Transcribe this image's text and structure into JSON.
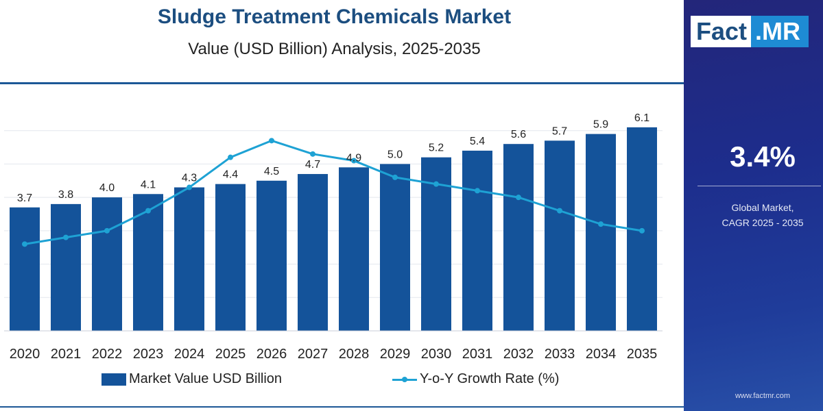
{
  "header": {
    "title": "Sludge Treatment Chemicals Market",
    "subtitle": "Value (USD Billion) Analysis, 2025-2035"
  },
  "legend": {
    "bar_label": "Market Value USD Billion",
    "line_label": "Y-o-Y Growth Rate (%)"
  },
  "side_panel": {
    "logo_left": "Fact",
    "logo_right": ".MR",
    "cagr_value": "3.4%",
    "cagr_label_line1": "Global Market,",
    "cagr_label_line2": "CAGR 2025 - 2035",
    "website": "www.factmr.com"
  },
  "colors": {
    "bar": "#14539a",
    "line": "#1ea2d4",
    "title": "#1c4e80",
    "gridline": "#e3e7ee"
  },
  "chart_data": {
    "type": "bar",
    "title": "Sludge Treatment Chemicals Market",
    "subtitle": "Value (USD Billion) Analysis, 2025-2035",
    "categories": [
      "2020",
      "2021",
      "2022",
      "2023",
      "2024",
      "2025",
      "2026",
      "2027",
      "2028",
      "2029",
      "2030",
      "2031",
      "2032",
      "2033",
      "2034",
      "2035"
    ],
    "series": [
      {
        "name": "Market Value USD Billion",
        "type": "bar",
        "axis": "left",
        "values": [
          3.7,
          3.8,
          4.0,
          4.1,
          4.3,
          4.4,
          4.5,
          4.7,
          4.9,
          5.0,
          5.2,
          5.4,
          5.6,
          5.7,
          5.9,
          6.1
        ],
        "labels": [
          "3.7",
          "3.8",
          "4.0",
          "4.1",
          "4.3",
          "4.4",
          "4.5",
          "4.7",
          "4.9",
          "5.0",
          "5.2",
          "5.4",
          "5.6",
          "5.7",
          "5.9",
          "6.1"
        ]
      },
      {
        "name": "Y-o-Y Growth Rate (%)",
        "type": "line",
        "axis": "right",
        "values": [
          2.6,
          2.8,
          3.0,
          3.6,
          4.3,
          5.2,
          5.7,
          5.3,
          5.1,
          4.6,
          4.4,
          4.2,
          4.0,
          3.6,
          3.2,
          3.0
        ]
      }
    ],
    "xlabel": "",
    "ylabel": "",
    "ylim": [
      0,
      7
    ],
    "y2lim": [
      0,
      7
    ],
    "grid": true,
    "legend": "bottom"
  }
}
